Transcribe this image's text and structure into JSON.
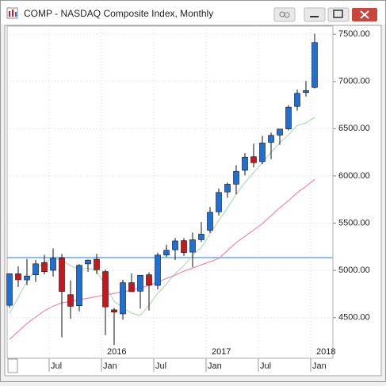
{
  "window_title": "COMP - NASDAQ Composite Index, Monthly",
  "chart_data": {
    "type": "candlestick",
    "categories": [
      null,
      null,
      null,
      null,
      null,
      "Jul",
      null,
      null,
      null,
      null,
      null,
      "Jan",
      null,
      null,
      null,
      null,
      null,
      "Jul",
      null,
      null,
      null,
      null,
      null,
      "Jan",
      null,
      null,
      null,
      null,
      null,
      "Jul",
      null,
      null,
      null,
      null,
      null,
      "Jan"
    ],
    "years": [
      null,
      null,
      null,
      null,
      null,
      null,
      null,
      null,
      null,
      null,
      null,
      "2016",
      null,
      null,
      null,
      null,
      null,
      null,
      null,
      null,
      null,
      null,
      null,
      "2017",
      null,
      null,
      null,
      null,
      null,
      null,
      null,
      null,
      null,
      null,
      null,
      "2018"
    ],
    "open": [
      4631,
      4964,
      4900,
      4953,
      5083,
      5001,
      5134,
      4743,
      4626,
      5069,
      5118,
      4988,
      4583,
      4540,
      4870,
      4780,
      4954,
      4841,
      5162,
      5218,
      5315,
      5193,
      5325,
      5425,
      5620,
      5830,
      5913,
      6060,
      6203,
      6151,
      6356,
      6432,
      6498,
      6736,
      6883,
      6937
    ],
    "high": [
      4967,
      5043,
      5120,
      5111,
      5164,
      5232,
      5175,
      4893,
      5065,
      5116,
      5176,
      5010,
      4604,
      4902,
      4968,
      4951,
      4979,
      5187,
      5271,
      5343,
      5342,
      5401,
      5512,
      5670,
      5867,
      5929,
      6113,
      6242,
      6341,
      6423,
      6458,
      6496,
      6749,
      6914,
      7004,
      7505
    ],
    "low": [
      4604,
      4826,
      4843,
      4877,
      4959,
      4935,
      4292,
      4487,
      4566,
      4985,
      4961,
      4313,
      4210,
      4479,
      4771,
      4595,
      4575,
      4798,
      5143,
      5110,
      5153,
      5034,
      5302,
      5397,
      5580,
      5769,
      5805,
      6006,
      6090,
      6123,
      6178,
      6329,
      6481,
      6690,
      6840,
      6926
    ],
    "close": [
      4964,
      4901,
      4941,
      5070,
      4987,
      5128,
      4777,
      4620,
      5054,
      5109,
      5007,
      4614,
      4558,
      4870,
      4775,
      4948,
      4843,
      5162,
      5213,
      5312,
      5189,
      5324,
      5383,
      5615,
      5825,
      5912,
      6048,
      6199,
      6140,
      6348,
      6429,
      6496,
      6728,
      6874,
      6903,
      7411
    ],
    "up_color": "#1e6fd6",
    "down_color": "#c8161d",
    "overlays": [
      {
        "color": "#b9dcb9",
        "values": [
          4547,
          4715,
          4883,
          5008,
          5092,
          5126,
          5109,
          5050,
          5008,
          5025,
          4992,
          4841,
          4673,
          4606,
          4547,
          4522,
          4631,
          4757,
          4857,
          4966,
          5050,
          5159,
          5243,
          5386,
          5529,
          5663,
          5805,
          5931,
          6032,
          6141,
          6250,
          6351,
          6435,
          6535,
          6560,
          6619
        ]
      },
      {
        "color": "#f28db3",
        "values": [
          4270,
          4354,
          4438,
          4505,
          4572,
          4622,
          4656,
          4673,
          4690,
          4706,
          4723,
          4740,
          4757,
          4773,
          4790,
          4815,
          4841,
          4874,
          4916,
          4950,
          4992,
          5025,
          5059,
          5092,
          5126,
          5210,
          5294,
          5361,
          5428,
          5495,
          5579,
          5663,
          5738,
          5822,
          5889,
          5965
        ]
      }
    ],
    "reference_line": {
      "value": 5135,
      "color": "#6aa8e8"
    },
    "ylim": [
      4070,
      7585
    ],
    "yticks": [
      {
        "value": 4500,
        "label": "4500.00"
      },
      {
        "value": 5000,
        "label": "5000.00"
      },
      {
        "value": 5500,
        "label": "5500.00"
      },
      {
        "value": 6000,
        "label": "6000.00"
      },
      {
        "value": 6500,
        "label": "6500.00"
      },
      {
        "value": 7000,
        "label": "7000.00"
      },
      {
        "value": 7500,
        "label": "7500.00"
      }
    ],
    "grid": true
  }
}
